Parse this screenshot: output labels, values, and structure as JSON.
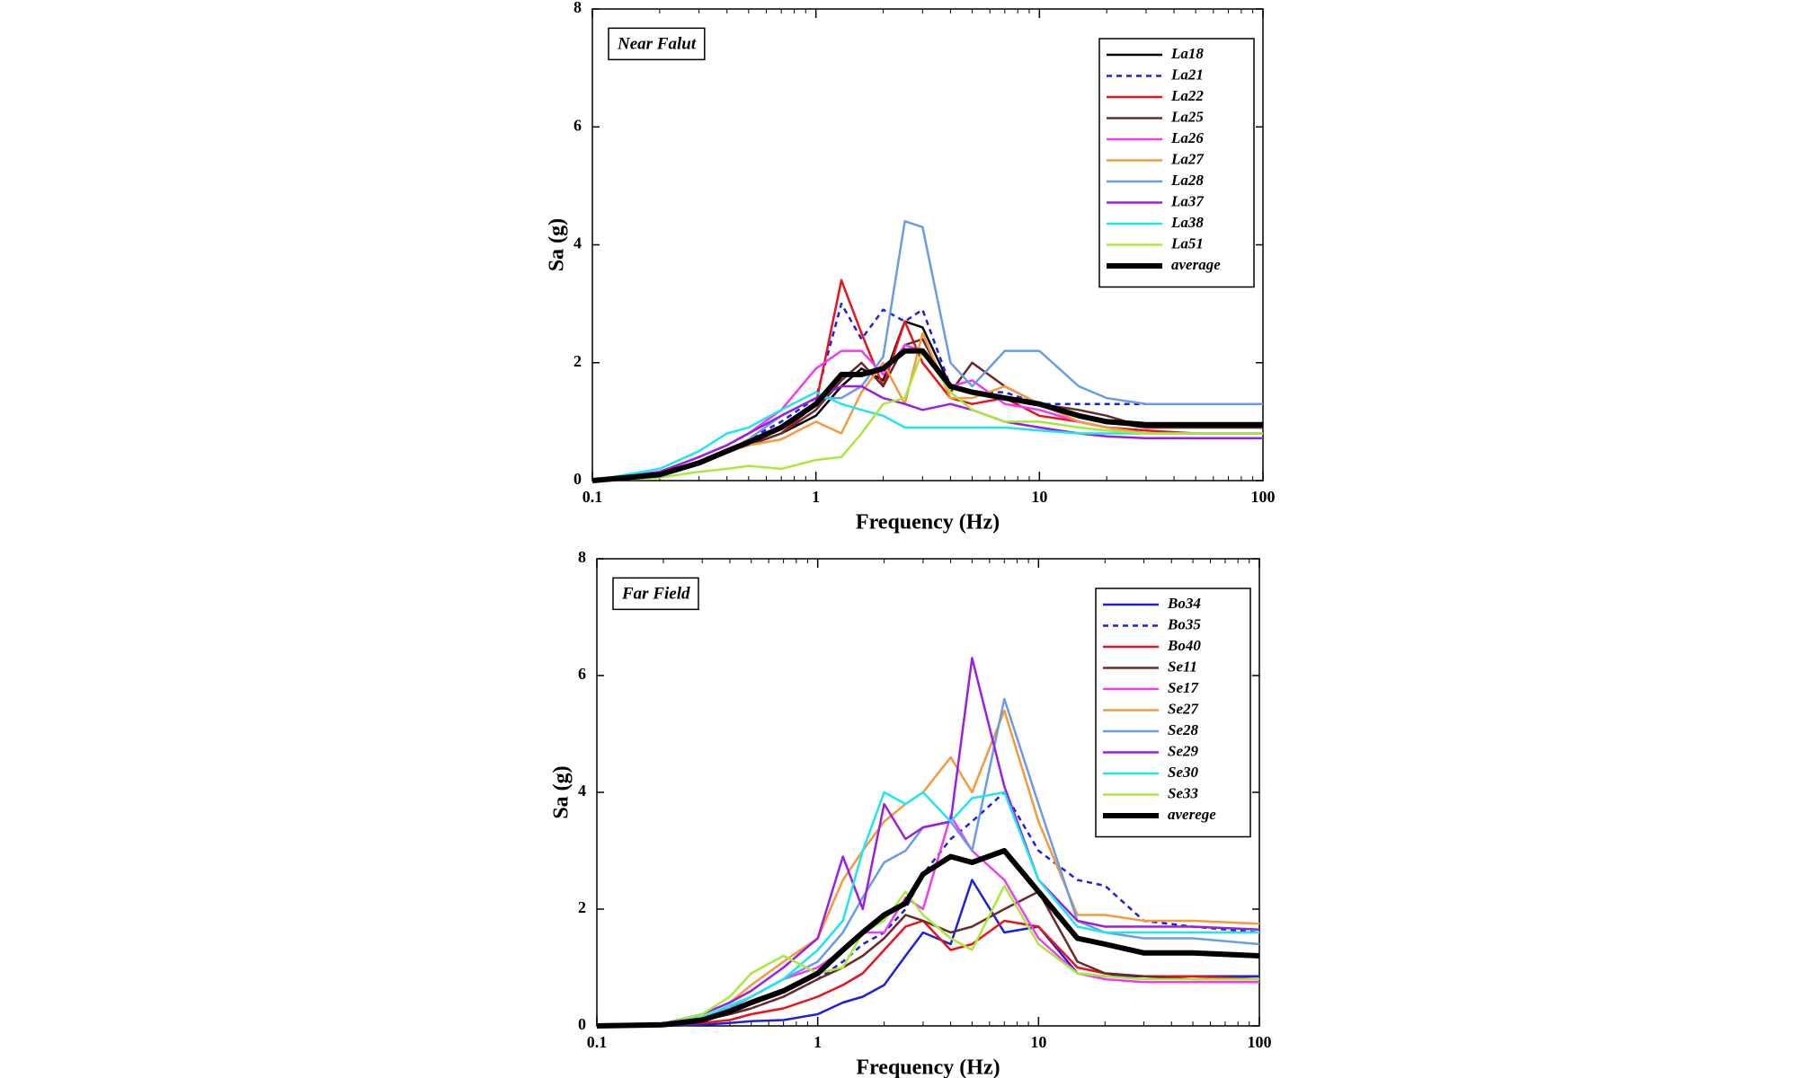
{
  "chart_data": [
    {
      "type": "line",
      "xscale": "log",
      "xlabel": "Frequency (Hz)",
      "ylabel": "Sa (g)",
      "annotation": "Near Falut",
      "xlim": [
        0.1,
        100
      ],
      "ylim": [
        0,
        8
      ],
      "xticks": [
        0.1,
        1,
        10,
        100
      ],
      "yticks": [
        0,
        2,
        4,
        6,
        8
      ],
      "legend": "upper right",
      "x": [
        0.1,
        0.2,
        0.3,
        0.4,
        0.5,
        0.7,
        1,
        1.3,
        1.6,
        2,
        2.5,
        3,
        4,
        5,
        7,
        10,
        15,
        20,
        30,
        50,
        100
      ],
      "series": [
        {
          "name": "La18",
          "color": "#000000",
          "style": "solid",
          "values": [
            0,
            0.1,
            0.3,
            0.5,
            0.6,
            0.8,
            1.1,
            1.6,
            1.9,
            1.7,
            2.7,
            2.6,
            1.6,
            1.5,
            1.4,
            1.3,
            1.1,
            1.0,
            0.9,
            0.9,
            0.9
          ]
        },
        {
          "name": "La21",
          "color": "#1f1fe0",
          "style": "dotted",
          "values": [
            0,
            0.1,
            0.3,
            0.5,
            0.7,
            1.0,
            1.4,
            3.0,
            2.4,
            2.9,
            2.7,
            2.9,
            1.6,
            1.5,
            1.5,
            1.3,
            1.3,
            1.3,
            1.3,
            1.3,
            1.3
          ]
        },
        {
          "name": "La22",
          "color": "#e8141c",
          "style": "solid",
          "values": [
            0,
            0.1,
            0.3,
            0.5,
            0.6,
            0.8,
            1.3,
            3.4,
            2.5,
            1.6,
            2.7,
            2.0,
            1.4,
            1.3,
            1.4,
            1.1,
            1.0,
            0.9,
            0.85,
            0.8,
            0.8
          ]
        },
        {
          "name": "La25",
          "color": "#6b2a2a",
          "style": "solid",
          "values": [
            0,
            0.1,
            0.3,
            0.5,
            0.6,
            0.8,
            1.2,
            1.7,
            2.0,
            1.6,
            2.3,
            2.4,
            1.5,
            2.0,
            1.6,
            1.3,
            1.2,
            1.1,
            0.9,
            0.9,
            0.9
          ]
        },
        {
          "name": "La26",
          "color": "#f03cf0",
          "style": "solid",
          "values": [
            0,
            0.15,
            0.4,
            0.6,
            0.8,
            1.2,
            1.9,
            2.2,
            2.2,
            1.8,
            2.3,
            2.2,
            1.6,
            1.7,
            1.3,
            1.2,
            1.0,
            0.9,
            0.8,
            0.8,
            0.8
          ]
        },
        {
          "name": "La27",
          "color": "#f49a3c",
          "style": "solid",
          "values": [
            0,
            0.1,
            0.3,
            0.5,
            0.6,
            0.7,
            1.0,
            0.8,
            1.5,
            2.0,
            1.3,
            2.5,
            1.4,
            1.4,
            1.6,
            1.3,
            1.0,
            0.9,
            0.8,
            0.8,
            0.8
          ]
        },
        {
          "name": "La28",
          "color": "#6a9be8",
          "style": "solid",
          "values": [
            0,
            0.1,
            0.3,
            0.5,
            0.7,
            1.1,
            1.4,
            1.4,
            1.6,
            2.1,
            4.4,
            4.3,
            2.0,
            1.6,
            2.2,
            2.2,
            1.6,
            1.4,
            1.3,
            1.3,
            1.3
          ]
        },
        {
          "name": "La37",
          "color": "#9b1fe0",
          "style": "solid",
          "values": [
            0,
            0.15,
            0.4,
            0.6,
            0.8,
            1.1,
            1.4,
            1.6,
            1.6,
            1.4,
            1.3,
            1.2,
            1.3,
            1.2,
            1.0,
            0.9,
            0.8,
            0.75,
            0.72,
            0.72,
            0.72
          ]
        },
        {
          "name": "La38",
          "color": "#1ee6f0",
          "style": "solid",
          "values": [
            0,
            0.2,
            0.5,
            0.8,
            0.9,
            1.2,
            1.5,
            1.3,
            1.2,
            1.1,
            0.9,
            0.9,
            0.9,
            0.9,
            0.9,
            0.85,
            0.8,
            0.8,
            0.8,
            0.8,
            0.8
          ]
        },
        {
          "name": "La51",
          "color": "#a8e83c",
          "style": "solid",
          "values": [
            0,
            0.05,
            0.15,
            0.2,
            0.25,
            0.2,
            0.35,
            0.4,
            0.8,
            1.3,
            1.4,
            2.2,
            1.5,
            1.2,
            1.0,
            1.0,
            0.9,
            0.85,
            0.8,
            0.8,
            0.8
          ]
        },
        {
          "name": "average",
          "color": "#000000",
          "style": "bold",
          "values": [
            0,
            0.1,
            0.3,
            0.5,
            0.65,
            0.9,
            1.3,
            1.8,
            1.8,
            1.9,
            2.2,
            2.2,
            1.6,
            1.5,
            1.4,
            1.3,
            1.1,
            1.0,
            0.95,
            0.95,
            0.95
          ]
        }
      ]
    },
    {
      "type": "line",
      "xscale": "log",
      "xlabel": "Frequency (Hz)",
      "ylabel": "Sa (g)",
      "annotation": "Far Field",
      "xlim": [
        0.1,
        100
      ],
      "ylim": [
        0,
        8
      ],
      "xticks": [
        0.1,
        1,
        10,
        100
      ],
      "yticks": [
        0,
        2,
        4,
        6,
        8
      ],
      "legend": "upper right",
      "x": [
        0.1,
        0.2,
        0.3,
        0.4,
        0.5,
        0.7,
        1,
        1.3,
        1.6,
        2,
        2.5,
        3,
        4,
        5,
        7,
        10,
        15,
        20,
        30,
        50,
        100
      ],
      "series": [
        {
          "name": "Bo34",
          "color": "#1f1fe0",
          "style": "solid",
          "values": [
            0,
            0,
            0.02,
            0.05,
            0.08,
            0.1,
            0.2,
            0.4,
            0.5,
            0.7,
            1.2,
            1.6,
            1.4,
            2.5,
            1.6,
            1.7,
            0.9,
            0.85,
            0.85,
            0.85,
            0.85
          ]
        },
        {
          "name": "Bo35",
          "color": "#1f1fe0",
          "style": "dotted",
          "values": [
            0,
            0.02,
            0.1,
            0.2,
            0.3,
            0.5,
            0.8,
            1.1,
            1.4,
            1.6,
            2.0,
            2.6,
            3.2,
            3.5,
            4.0,
            3.0,
            2.5,
            2.4,
            1.8,
            1.7,
            1.6
          ]
        },
        {
          "name": "Bo40",
          "color": "#e8141c",
          "style": "solid",
          "values": [
            0,
            0.01,
            0.05,
            0.1,
            0.2,
            0.3,
            0.5,
            0.7,
            0.9,
            1.3,
            1.7,
            1.8,
            1.3,
            1.4,
            1.8,
            1.7,
            1.0,
            0.9,
            0.85,
            0.85,
            0.8
          ]
        },
        {
          "name": "Se11",
          "color": "#6b2a2a",
          "style": "solid",
          "values": [
            0,
            0.02,
            0.1,
            0.2,
            0.3,
            0.5,
            0.8,
            1.0,
            1.2,
            1.5,
            1.9,
            1.8,
            1.6,
            1.7,
            2.0,
            2.3,
            1.1,
            0.9,
            0.85,
            0.8,
            0.8
          ]
        },
        {
          "name": "Se17",
          "color": "#f03cf0",
          "style": "solid",
          "values": [
            0,
            0.03,
            0.15,
            0.3,
            0.5,
            0.8,
            1.0,
            1.3,
            1.6,
            1.6,
            2.2,
            2.0,
            3.6,
            3.0,
            2.5,
            1.5,
            0.9,
            0.8,
            0.75,
            0.75,
            0.75
          ]
        },
        {
          "name": "Se27",
          "color": "#f49a3c",
          "style": "solid",
          "values": [
            0,
            0.03,
            0.2,
            0.4,
            0.7,
            1.1,
            1.5,
            2.5,
            3.0,
            3.5,
            3.8,
            4.0,
            4.6,
            4.0,
            5.4,
            3.5,
            1.9,
            1.9,
            1.8,
            1.8,
            1.75
          ]
        },
        {
          "name": "Se28",
          "color": "#6a9be8",
          "style": "solid",
          "values": [
            0,
            0.03,
            0.15,
            0.3,
            0.5,
            0.8,
            1.1,
            1.6,
            2.2,
            2.8,
            3.0,
            3.4,
            3.5,
            3.0,
            5.6,
            3.8,
            1.8,
            1.6,
            1.5,
            1.5,
            1.4
          ]
        },
        {
          "name": "Se29",
          "color": "#9b1fe0",
          "style": "solid",
          "values": [
            0,
            0.04,
            0.2,
            0.4,
            0.6,
            1.0,
            1.5,
            2.9,
            2.0,
            3.8,
            3.2,
            3.4,
            3.5,
            6.3,
            4.1,
            2.5,
            1.8,
            1.7,
            1.7,
            1.7,
            1.65
          ]
        },
        {
          "name": "Se30",
          "color": "#1ee6f0",
          "style": "solid",
          "values": [
            0,
            0.03,
            0.15,
            0.35,
            0.5,
            0.8,
            1.3,
            1.8,
            3.0,
            4.0,
            3.8,
            4.0,
            3.5,
            3.9,
            4.0,
            2.5,
            1.7,
            1.6,
            1.6,
            1.6,
            1.6
          ]
        },
        {
          "name": "Se33",
          "color": "#a8e83c",
          "style": "solid",
          "values": [
            0,
            0.03,
            0.2,
            0.5,
            0.9,
            1.2,
            0.9,
            1.0,
            1.6,
            1.8,
            2.3,
            1.9,
            1.5,
            1.3,
            2.4,
            1.4,
            0.9,
            0.85,
            0.8,
            0.8,
            0.8
          ]
        },
        {
          "name": "averege",
          "color": "#000000",
          "style": "bold",
          "values": [
            0,
            0.02,
            0.1,
            0.25,
            0.4,
            0.6,
            0.9,
            1.3,
            1.6,
            1.9,
            2.1,
            2.6,
            2.9,
            2.8,
            3.0,
            2.3,
            1.5,
            1.4,
            1.25,
            1.25,
            1.2
          ]
        }
      ]
    }
  ]
}
